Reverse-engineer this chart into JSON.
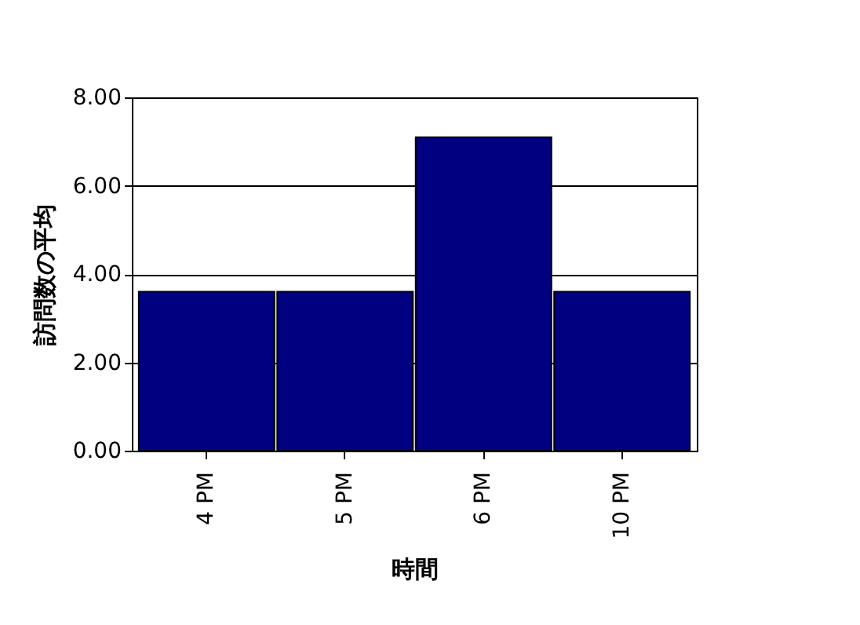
{
  "chart_data": {
    "type": "bar",
    "xlabel": "時間",
    "ylabel": "訪問数の平均",
    "categories": [
      "4 PM",
      "5 PM",
      "6 PM",
      "10 PM"
    ],
    "values": [
      3.6,
      3.6,
      7.1,
      3.6
    ],
    "color": "#000080",
    "ylim": [
      0,
      8
    ],
    "yticks": [
      {
        "value": 0,
        "label": "0.00"
      },
      {
        "value": 2,
        "label": "2.00"
      },
      {
        "value": 4,
        "label": "4.00"
      },
      {
        "value": 6,
        "label": "6.00"
      },
      {
        "value": 8,
        "label": "8.00"
      }
    ],
    "grid": "y"
  }
}
